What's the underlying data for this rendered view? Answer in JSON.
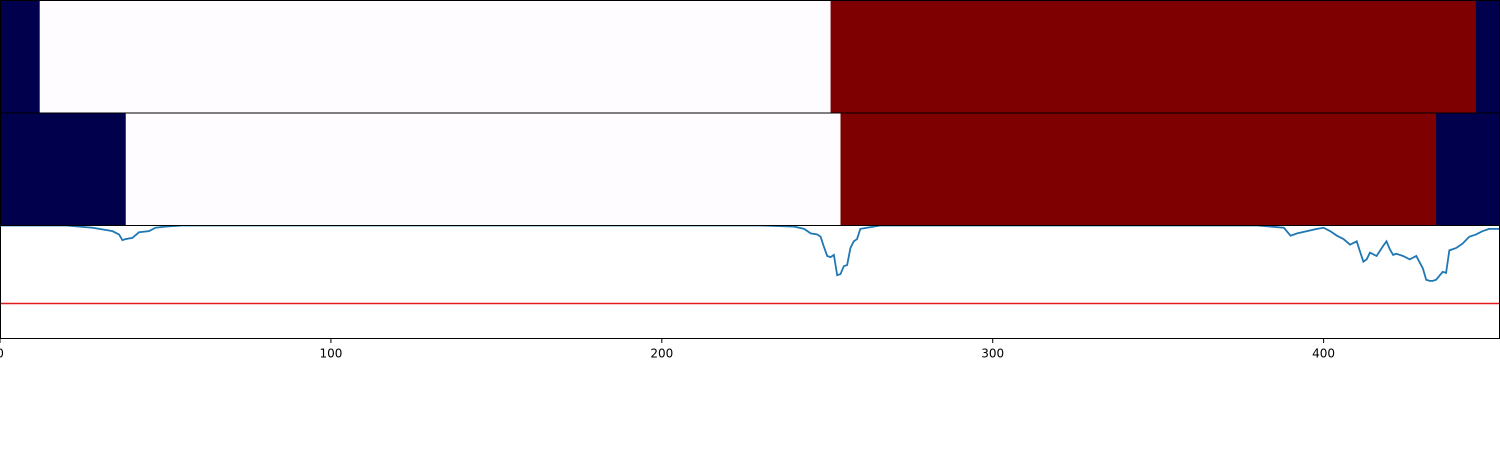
{
  "chart_data": {
    "type": "line",
    "xlim": [
      0,
      453
    ],
    "x_ticks": [
      0,
      100,
      200,
      300,
      400
    ],
    "x_tick_labels": [
      "0",
      "100",
      "200",
      "300",
      "400"
    ],
    "grid": false,
    "legend": "none",
    "state_bars": {
      "colors": {
        "0": "#00004c",
        "1": "#fffcff",
        "2": "#7f0000"
      },
      "rows": [
        {
          "segments": [
            {
              "start": 0,
              "end": 12,
              "state": 0
            },
            {
              "start": 12,
              "end": 251,
              "state": 1
            },
            {
              "start": 251,
              "end": 446,
              "state": 2
            },
            {
              "start": 446,
              "end": 453,
              "state": 0
            }
          ]
        },
        {
          "segments": [
            {
              "start": 0,
              "end": 38,
              "state": 0
            },
            {
              "start": 38,
              "end": 254,
              "state": 1
            },
            {
              "start": 254,
              "end": 434,
              "state": 2
            },
            {
              "start": 434,
              "end": 453,
              "state": 0
            }
          ]
        }
      ]
    },
    "line_panel": {
      "ylim": [
        -1.0,
        0.0
      ],
      "threshold": -0.69,
      "threshold_color": "#e31a1c",
      "line_color": "#1f77b4",
      "series": [
        {
          "x": [
            0,
            20,
            28,
            30,
            34,
            36,
            37,
            38,
            40,
            42,
            45,
            47,
            50,
            55,
            60,
            100,
            150,
            200,
            230,
            240,
            243,
            245,
            247,
            248,
            249,
            250,
            251,
            252,
            253,
            254,
            255,
            256,
            257,
            258,
            259,
            260,
            262,
            264,
            266,
            268,
            270,
            280,
            330,
            380,
            388,
            390,
            392,
            395,
            398,
            400,
            402,
            404,
            406,
            408,
            410,
            412,
            413,
            414,
            416,
            418,
            419,
            420,
            421,
            422,
            424,
            426,
            428,
            430,
            431,
            432,
            433,
            434,
            436,
            437,
            438,
            440,
            442,
            444,
            446,
            448,
            450,
            453
          ],
          "y": [
            0.0,
            0.0,
            -0.02,
            -0.03,
            -0.05,
            -0.08,
            -0.13,
            -0.12,
            -0.11,
            -0.06,
            -0.05,
            -0.02,
            -0.01,
            0.0,
            0.0,
            0.0,
            0.0,
            0.0,
            0.0,
            -0.01,
            -0.03,
            -0.07,
            -0.08,
            -0.1,
            -0.19,
            -0.27,
            -0.28,
            -0.26,
            -0.44,
            -0.43,
            -0.36,
            -0.35,
            -0.2,
            -0.14,
            -0.12,
            -0.03,
            -0.02,
            -0.01,
            0.0,
            0.0,
            0.0,
            0.0,
            0.0,
            0.0,
            -0.02,
            -0.09,
            -0.07,
            -0.05,
            -0.03,
            -0.02,
            -0.05,
            -0.09,
            -0.12,
            -0.17,
            -0.14,
            -0.32,
            -0.3,
            -0.24,
            -0.27,
            -0.18,
            -0.14,
            -0.21,
            -0.26,
            -0.25,
            -0.27,
            -0.3,
            -0.27,
            -0.38,
            -0.48,
            -0.49,
            -0.49,
            -0.48,
            -0.41,
            -0.42,
            -0.22,
            -0.2,
            -0.16,
            -0.1,
            -0.08,
            -0.05,
            -0.03,
            -0.03
          ]
        }
      ]
    }
  }
}
